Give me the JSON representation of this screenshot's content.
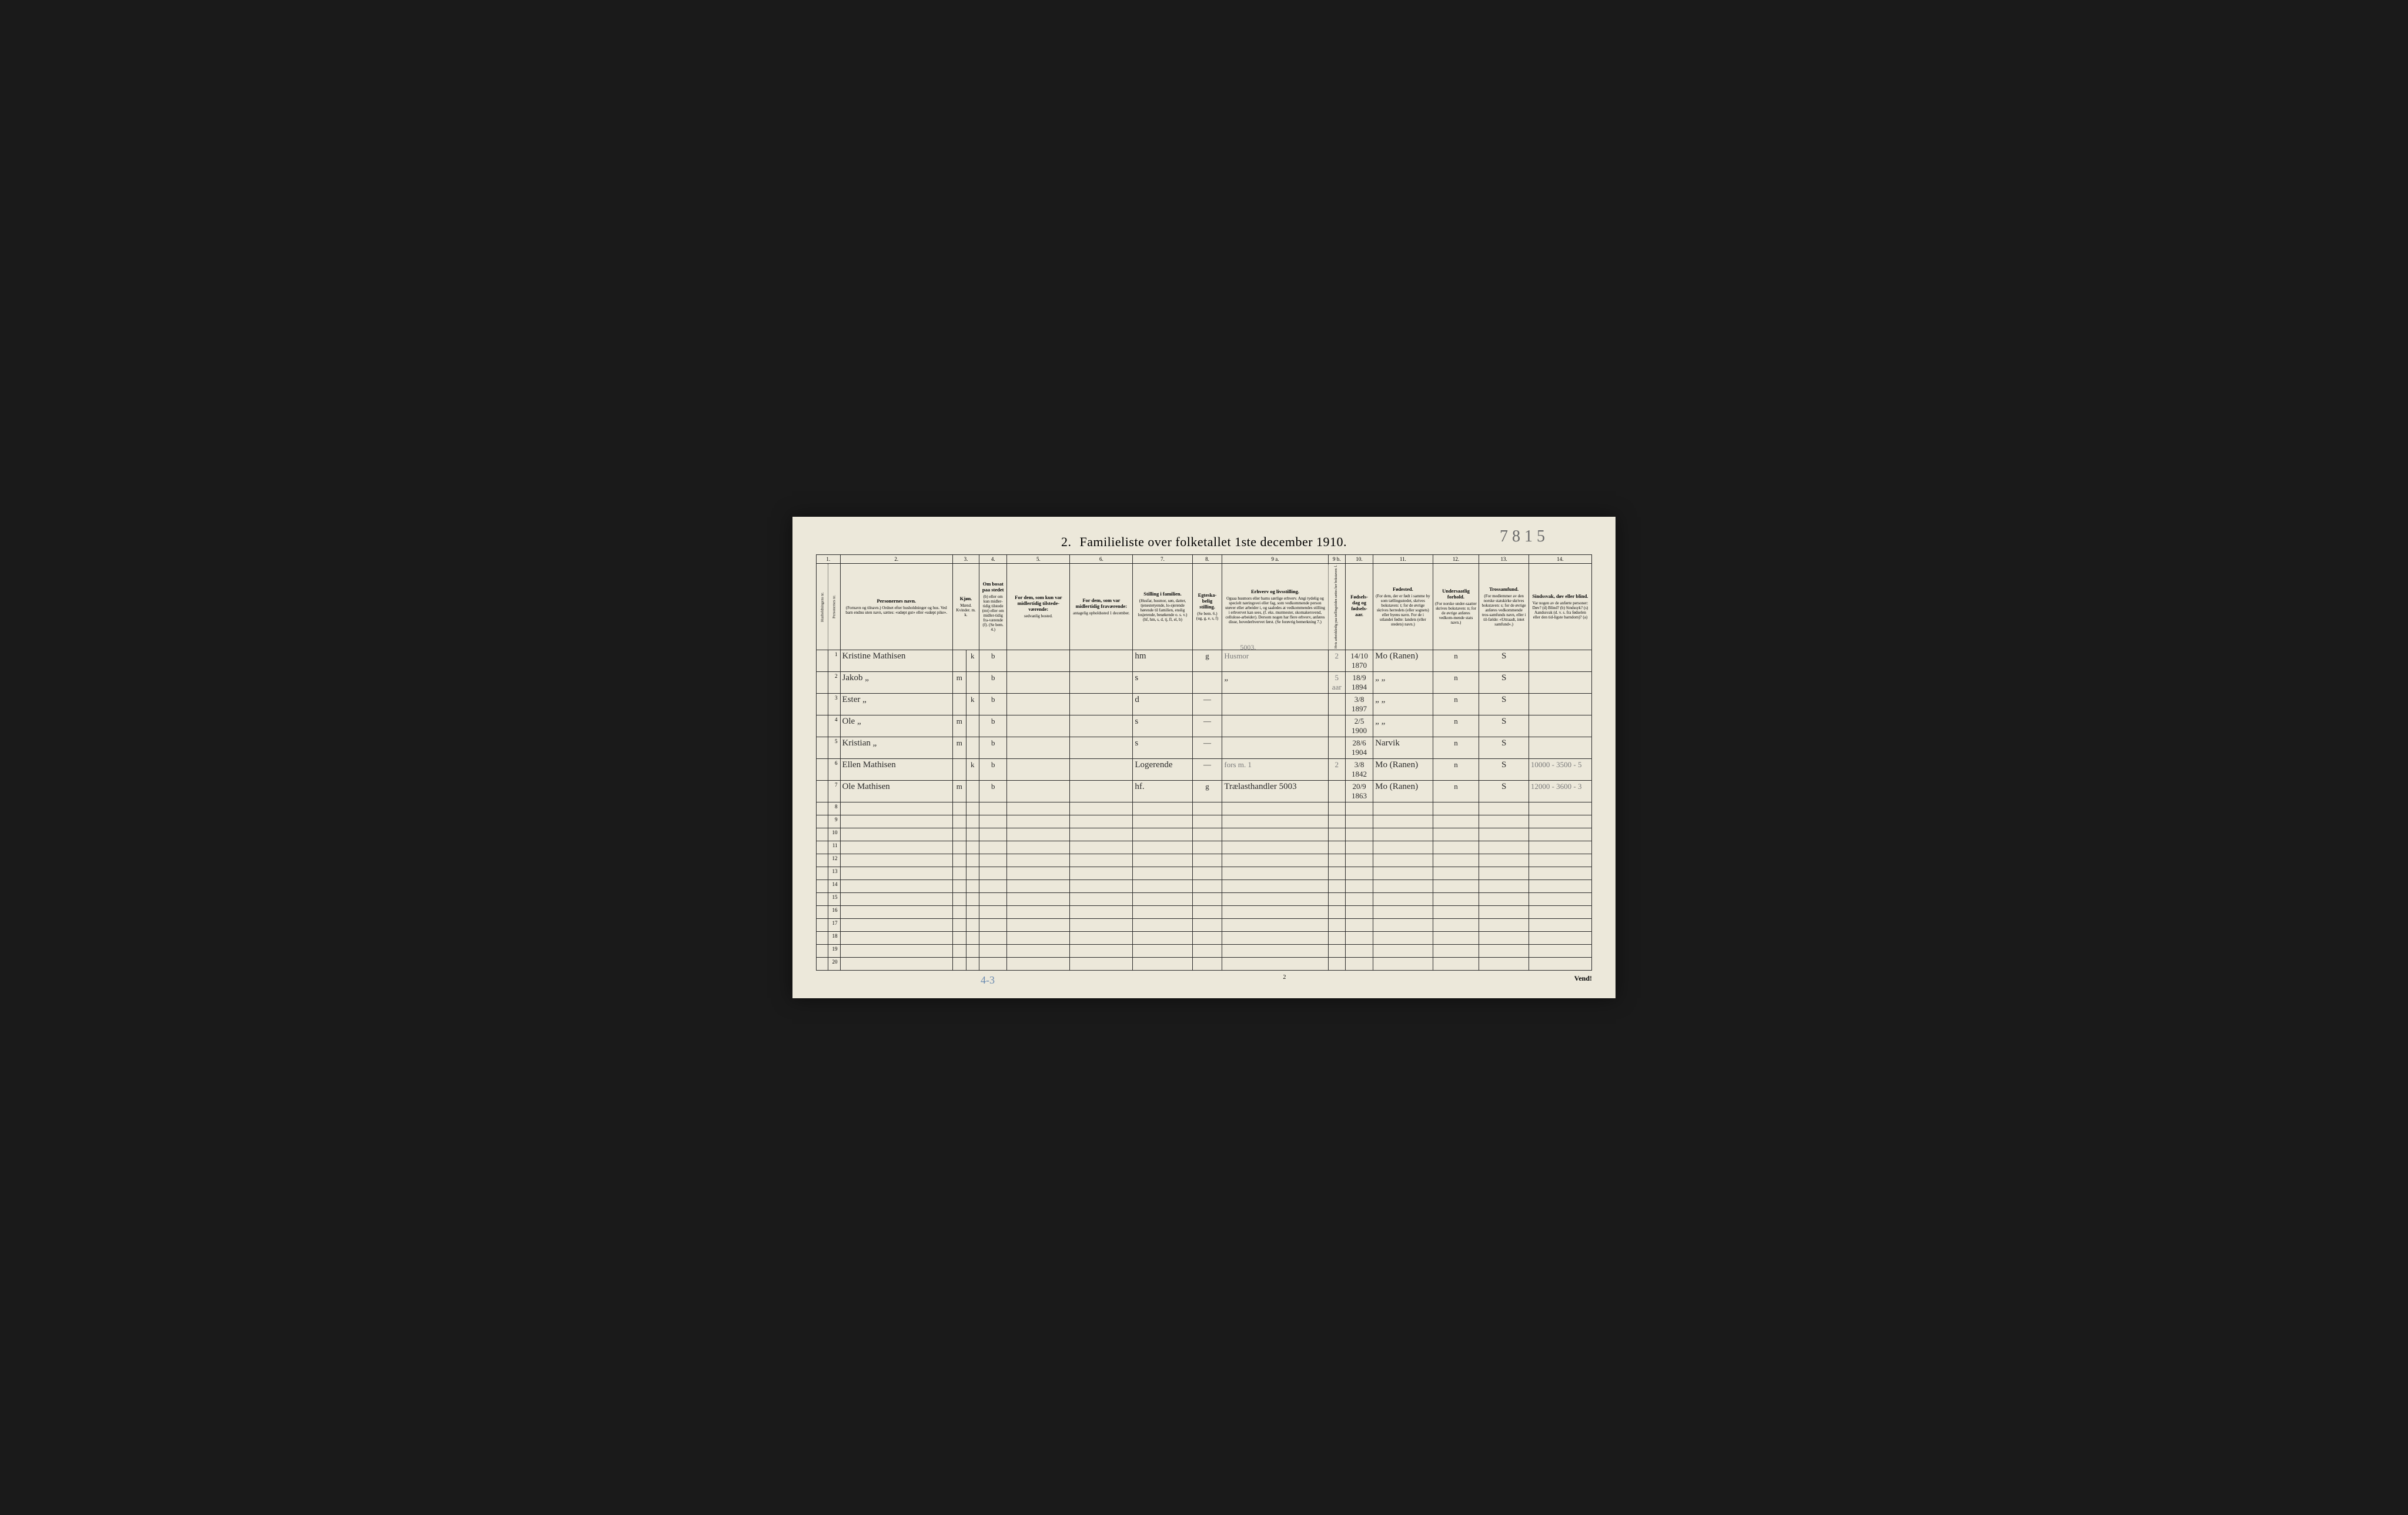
{
  "top_pencil": "7 8 1 5",
  "title": {
    "num": "2.",
    "text": "Familieliste over folketallet 1ste december 1910."
  },
  "col_numbers": [
    "1.",
    "",
    "2.",
    "3.",
    "4.",
    "5.",
    "6.",
    "7.",
    "8.",
    "9 a.",
    "9 b.",
    "10.",
    "11.",
    "12.",
    "13.",
    "14."
  ],
  "headers": {
    "c1": "Husholdningens nr.",
    "c2": "Personernes nr.",
    "c3": {
      "title": "Personernes navn.",
      "sub": "(Fornavn og tilnavn.)\nOrdnet efter husholdninger og hus.\nVed barn endnu uten navn, sættes: «udøpt gut» eller «udøpt pike»."
    },
    "c4_5": {
      "title": "Kjøn.",
      "sub": "Mænd. Kvinder.\nm.   k."
    },
    "c6": {
      "title": "Om bosat paa stedet",
      "sub": "(b) eller om kun midler-tidig tilstede (mt) eller om midler-tidig fra-værende (f). (Se bem. 4.)"
    },
    "c7": {
      "title": "For dem, som kun var midlertidig tilstede-værende:",
      "sub": "sedvanlig bosted."
    },
    "c8": {
      "title": "For dem, som var midlertidig fraværende:",
      "sub": "antagelig opholdssted 1 december."
    },
    "c9": {
      "title": "Stilling i familien.",
      "sub": "(Husfar, husmor, søn, datter, tjenestetyende, lo-sjerende hørende til familien, enslig losjerende, besøkende o. s. v.)\n(hf, hm, s, d, tj, fl, el, b)"
    },
    "c10": {
      "title": "Egteska-belig stilling.",
      "sub": "(Se bem. 6.)\n(ug, g, e, s, f)"
    },
    "c11": {
      "title": "Erhverv og livsstilling.",
      "sub": "Ogsaa husmors eller barns særlige erhverv. Angi tydelig og specielt næringsvei eller fag, som vedkommende person utøver eller arbeider i, og saaledes at vedkommendes stilling i erhvervet kan sees, (f. eks. murmester, skomakersvend, cellulose-arbeider). Dersom nogen har flere erhverv, anføres disse, hovederhvervet først. (Se forøvrig bemerkning 7.)"
    },
    "c12": {
      "title": "",
      "sub": "Hvis arbeidsledig paa tællingstiden sættes her bokstaven: l."
    },
    "c13": {
      "title": "Fødsels-dag og fødsels-aar.",
      "sub": ""
    },
    "c14": {
      "title": "Fødested.",
      "sub": "(For dem, der er født i samme by som tællingsstedet, skrives bokstaven: t; for de øvrige skrives herredets (eller sognets) eller byens navn. For de i utlandet fødte: landets (eller stedets) navn.)"
    },
    "c15": {
      "title": "Undersaatlig forhold.",
      "sub": "(For norske under-saatter skrives bokstaven: n; for de øvrige anføres vedkom-mende stats navn.)"
    },
    "c16": {
      "title": "Trossamfund.",
      "sub": "(For medlemmer av den norske statskirke skrives bokstaven: s; for de øvrige anføres vedkommende tros-samfunds navn, eller i til-fælde: «Uttraadt, intet samfund».)"
    },
    "c17": {
      "title": "Sindssvak, døv eller blind.",
      "sub": "Var nogen av de anførte personer:\nDøv?      (d)\nBlind?    (b)\nSindssyk? (s)\nAandssvak (d. v. s. fra fødselen eller den tid-ligste barndom)? (a)"
    }
  },
  "pencil_above_row1": "5003.",
  "rows": [
    {
      "n": "1",
      "name": "Kristine Mathisen",
      "sex_m": "",
      "sex_k": "k",
      "bosat": "b",
      "col7": "",
      "col8": "",
      "stilling": "hm",
      "egte": "g",
      "erhverv": "Husmor",
      "erh_mark": "2",
      "fdato": "14/10 1870",
      "fsted": "Mo (Ranen)",
      "under": "n",
      "tro": "S",
      "sind": ""
    },
    {
      "n": "2",
      "name": "Jakob        „",
      "sex_m": "m",
      "sex_k": "",
      "bosat": "b",
      "col7": "",
      "col8": "",
      "stilling": "s",
      "egte": "",
      "erhverv": "„",
      "erh_mark": "5 aar",
      "fdato": "18/9 1894",
      "fsted": "„   „",
      "under": "n",
      "tro": "S",
      "sind": ""
    },
    {
      "n": "3",
      "name": "Ester        „",
      "sex_m": "",
      "sex_k": "k",
      "bosat": "b",
      "col7": "",
      "col8": "",
      "stilling": "d",
      "egte": "—",
      "erhverv": "",
      "erh_mark": "",
      "fdato": "3/8 1897",
      "fsted": "„   „",
      "under": "n",
      "tro": "S",
      "sind": ""
    },
    {
      "n": "4",
      "name": "Ole          „",
      "sex_m": "m",
      "sex_k": "",
      "bosat": "b",
      "col7": "",
      "col8": "",
      "stilling": "s",
      "egte": "—",
      "erhverv": "",
      "erh_mark": "",
      "fdato": "2/5 1900",
      "fsted": "„   „",
      "under": "n",
      "tro": "S",
      "sind": ""
    },
    {
      "n": "5",
      "name": "Kristian     „",
      "sex_m": "m",
      "sex_k": "",
      "bosat": "b",
      "col7": "",
      "col8": "",
      "stilling": "s",
      "egte": "—",
      "erhverv": "",
      "erh_mark": "",
      "fdato": "28/6 1904",
      "fsted": "Narvik",
      "under": "n",
      "tro": "S",
      "sind": ""
    },
    {
      "n": "6",
      "name": "Ellen Mathisen",
      "sex_m": "",
      "sex_k": "k",
      "bosat": "b",
      "col7": "",
      "col8": "",
      "stilling": "Logerende",
      "egte": "—",
      "erhverv": "fors m. 1",
      "erh_mark": "2",
      "fdato": "3/8 1842",
      "fsted": "Mo (Ranen)",
      "under": "n",
      "tro": "S",
      "sind": "10000 - 3500 - 5"
    },
    {
      "n": "7",
      "name": "Ole Mathisen",
      "sex_m": "m",
      "sex_k": "",
      "bosat": "b",
      "col7": "",
      "col8": "",
      "stilling": "hf.",
      "egte": "g",
      "erhverv": "Trælasthandler   5003",
      "erh_mark": "",
      "fdato": "20/9 1863",
      "fsted": "Mo (Ranen)",
      "under": "n",
      "tro": "S",
      "sind": "12000 - 3600 - 3"
    },
    {
      "n": "8"
    },
    {
      "n": "9"
    },
    {
      "n": "10"
    },
    {
      "n": "11"
    },
    {
      "n": "12"
    },
    {
      "n": "13"
    },
    {
      "n": "14"
    },
    {
      "n": "15"
    },
    {
      "n": "16"
    },
    {
      "n": "17"
    },
    {
      "n": "18"
    },
    {
      "n": "19"
    },
    {
      "n": "20"
    }
  ],
  "footer": {
    "pencil": "4-3",
    "page_num": "2",
    "vend": "Vend!"
  }
}
